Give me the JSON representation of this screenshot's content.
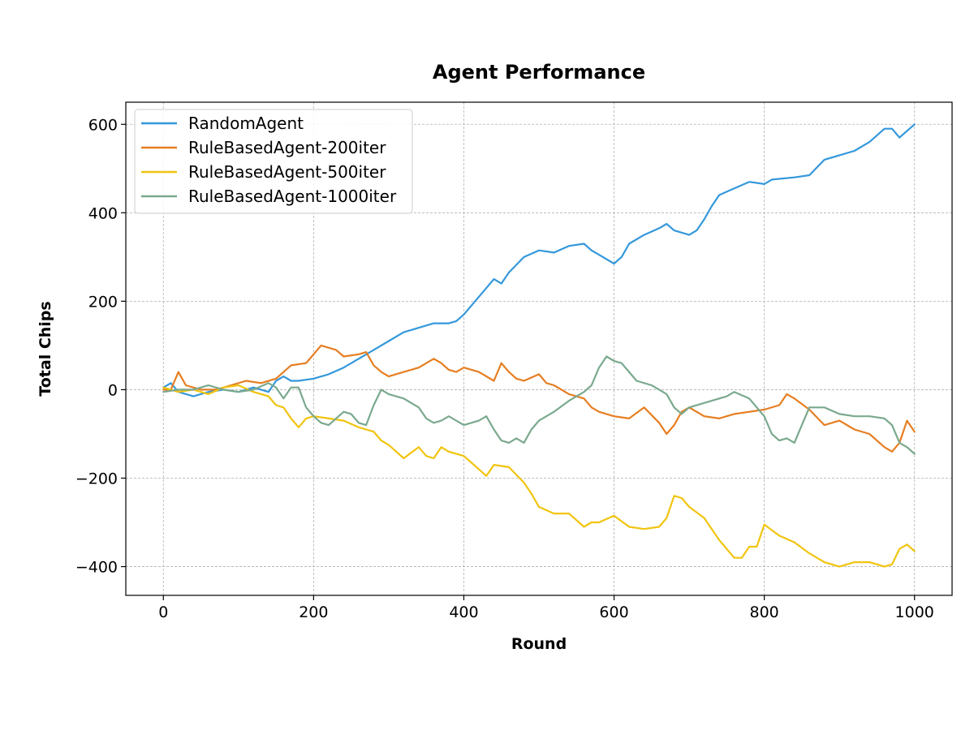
{
  "chart_data": {
    "type": "line",
    "title": "Agent Performance",
    "xlabel": "Round",
    "ylabel": "Total Chips",
    "xlim": [
      -50,
      1050
    ],
    "ylim": [
      -465,
      650
    ],
    "x_ticks": [
      0,
      200,
      400,
      600,
      800,
      1000
    ],
    "y_ticks": [
      -400,
      -200,
      0,
      200,
      400,
      600
    ],
    "x_tick_labels": [
      "0",
      "200",
      "400",
      "600",
      "800",
      "1000"
    ],
    "y_tick_labels": [
      "−400",
      "−200",
      "0",
      "200",
      "400",
      "600"
    ],
    "grid": true,
    "legend_position": "upper-left",
    "series": [
      {
        "name": "RandomAgent",
        "color": "#3498db",
        "points": [
          [
            0,
            5
          ],
          [
            10,
            15
          ],
          [
            20,
            -5
          ],
          [
            40,
            -15
          ],
          [
            60,
            -5
          ],
          [
            80,
            0
          ],
          [
            100,
            -5
          ],
          [
            120,
            5
          ],
          [
            140,
            -5
          ],
          [
            150,
            20
          ],
          [
            160,
            30
          ],
          [
            170,
            20
          ],
          [
            180,
            20
          ],
          [
            200,
            25
          ],
          [
            220,
            35
          ],
          [
            240,
            50
          ],
          [
            260,
            70
          ],
          [
            280,
            90
          ],
          [
            300,
            110
          ],
          [
            320,
            130
          ],
          [
            340,
            140
          ],
          [
            360,
            150
          ],
          [
            380,
            150
          ],
          [
            390,
            155
          ],
          [
            400,
            170
          ],
          [
            420,
            210
          ],
          [
            440,
            250
          ],
          [
            450,
            240
          ],
          [
            460,
            265
          ],
          [
            480,
            300
          ],
          [
            500,
            315
          ],
          [
            520,
            310
          ],
          [
            540,
            325
          ],
          [
            560,
            330
          ],
          [
            570,
            315
          ],
          [
            580,
            305
          ],
          [
            600,
            285
          ],
          [
            610,
            300
          ],
          [
            620,
            330
          ],
          [
            640,
            350
          ],
          [
            660,
            365
          ],
          [
            670,
            375
          ],
          [
            680,
            360
          ],
          [
            700,
            350
          ],
          [
            710,
            360
          ],
          [
            720,
            385
          ],
          [
            730,
            415
          ],
          [
            740,
            440
          ],
          [
            760,
            455
          ],
          [
            780,
            470
          ],
          [
            800,
            465
          ],
          [
            810,
            475
          ],
          [
            840,
            480
          ],
          [
            860,
            485
          ],
          [
            880,
            520
          ],
          [
            900,
            530
          ],
          [
            920,
            540
          ],
          [
            940,
            560
          ],
          [
            960,
            590
          ],
          [
            970,
            590
          ],
          [
            980,
            570
          ],
          [
            1000,
            600
          ]
        ]
      },
      {
        "name": "RuleBasedAgent-200iter",
        "color": "#e67e22",
        "points": [
          [
            0,
            0
          ],
          [
            10,
            0
          ],
          [
            20,
            40
          ],
          [
            30,
            10
          ],
          [
            50,
            0
          ],
          [
            70,
            0
          ],
          [
            90,
            10
          ],
          [
            110,
            20
          ],
          [
            130,
            15
          ],
          [
            150,
            25
          ],
          [
            170,
            55
          ],
          [
            190,
            60
          ],
          [
            200,
            80
          ],
          [
            210,
            100
          ],
          [
            230,
            90
          ],
          [
            240,
            75
          ],
          [
            260,
            80
          ],
          [
            270,
            85
          ],
          [
            280,
            55
          ],
          [
            290,
            40
          ],
          [
            300,
            30
          ],
          [
            320,
            40
          ],
          [
            340,
            50
          ],
          [
            350,
            60
          ],
          [
            360,
            70
          ],
          [
            370,
            60
          ],
          [
            380,
            45
          ],
          [
            390,
            40
          ],
          [
            400,
            50
          ],
          [
            420,
            40
          ],
          [
            440,
            20
          ],
          [
            450,
            60
          ],
          [
            460,
            40
          ],
          [
            470,
            25
          ],
          [
            480,
            20
          ],
          [
            500,
            35
          ],
          [
            510,
            15
          ],
          [
            520,
            10
          ],
          [
            540,
            -10
          ],
          [
            560,
            -20
          ],
          [
            570,
            -40
          ],
          [
            580,
            -50
          ],
          [
            600,
            -60
          ],
          [
            620,
            -65
          ],
          [
            640,
            -40
          ],
          [
            660,
            -75
          ],
          [
            670,
            -100
          ],
          [
            680,
            -80
          ],
          [
            690,
            -50
          ],
          [
            700,
            -40
          ],
          [
            720,
            -60
          ],
          [
            740,
            -65
          ],
          [
            760,
            -55
          ],
          [
            780,
            -50
          ],
          [
            800,
            -45
          ],
          [
            820,
            -35
          ],
          [
            830,
            -10
          ],
          [
            840,
            -20
          ],
          [
            860,
            -45
          ],
          [
            880,
            -80
          ],
          [
            900,
            -70
          ],
          [
            920,
            -90
          ],
          [
            940,
            -100
          ],
          [
            960,
            -130
          ],
          [
            970,
            -140
          ],
          [
            980,
            -120
          ],
          [
            990,
            -70
          ],
          [
            1000,
            -95
          ]
        ]
      },
      {
        "name": "RuleBasedAgent-500iter",
        "color": "#f1c40f",
        "points": [
          [
            0,
            5
          ],
          [
            20,
            -5
          ],
          [
            40,
            0
          ],
          [
            60,
            -10
          ],
          [
            80,
            5
          ],
          [
            100,
            10
          ],
          [
            120,
            -5
          ],
          [
            140,
            -15
          ],
          [
            150,
            -35
          ],
          [
            160,
            -40
          ],
          [
            170,
            -65
          ],
          [
            180,
            -85
          ],
          [
            190,
            -65
          ],
          [
            200,
            -60
          ],
          [
            220,
            -65
          ],
          [
            240,
            -70
          ],
          [
            260,
            -85
          ],
          [
            280,
            -95
          ],
          [
            290,
            -115
          ],
          [
            300,
            -125
          ],
          [
            310,
            -140
          ],
          [
            320,
            -155
          ],
          [
            340,
            -130
          ],
          [
            350,
            -150
          ],
          [
            360,
            -155
          ],
          [
            370,
            -130
          ],
          [
            380,
            -140
          ],
          [
            400,
            -150
          ],
          [
            420,
            -180
          ],
          [
            430,
            -195
          ],
          [
            440,
            -170
          ],
          [
            460,
            -175
          ],
          [
            480,
            -210
          ],
          [
            490,
            -235
          ],
          [
            500,
            -265
          ],
          [
            520,
            -280
          ],
          [
            540,
            -280
          ],
          [
            560,
            -310
          ],
          [
            570,
            -300
          ],
          [
            580,
            -300
          ],
          [
            600,
            -285
          ],
          [
            620,
            -310
          ],
          [
            640,
            -315
          ],
          [
            660,
            -310
          ],
          [
            670,
            -290
          ],
          [
            680,
            -240
          ],
          [
            690,
            -245
          ],
          [
            700,
            -265
          ],
          [
            720,
            -290
          ],
          [
            740,
            -340
          ],
          [
            760,
            -380
          ],
          [
            770,
            -380
          ],
          [
            780,
            -355
          ],
          [
            790,
            -355
          ],
          [
            800,
            -305
          ],
          [
            820,
            -330
          ],
          [
            840,
            -345
          ],
          [
            860,
            -370
          ],
          [
            880,
            -390
          ],
          [
            900,
            -400
          ],
          [
            920,
            -390
          ],
          [
            940,
            -390
          ],
          [
            960,
            -400
          ],
          [
            970,
            -395
          ],
          [
            980,
            -360
          ],
          [
            990,
            -350
          ],
          [
            1000,
            -365
          ]
        ]
      },
      {
        "name": "RuleBasedAgent-1000iter",
        "color": "#7aa98e",
        "points": [
          [
            0,
            -5
          ],
          [
            20,
            0
          ],
          [
            40,
            0
          ],
          [
            60,
            10
          ],
          [
            80,
            0
          ],
          [
            100,
            -5
          ],
          [
            120,
            0
          ],
          [
            140,
            15
          ],
          [
            150,
            5
          ],
          [
            160,
            -20
          ],
          [
            170,
            5
          ],
          [
            180,
            5
          ],
          [
            190,
            -40
          ],
          [
            200,
            -60
          ],
          [
            210,
            -75
          ],
          [
            220,
            -80
          ],
          [
            230,
            -65
          ],
          [
            240,
            -50
          ],
          [
            250,
            -55
          ],
          [
            260,
            -75
          ],
          [
            270,
            -80
          ],
          [
            280,
            -35
          ],
          [
            290,
            0
          ],
          [
            300,
            -10
          ],
          [
            320,
            -20
          ],
          [
            340,
            -40
          ],
          [
            350,
            -65
          ],
          [
            360,
            -75
          ],
          [
            370,
            -70
          ],
          [
            380,
            -60
          ],
          [
            400,
            -80
          ],
          [
            420,
            -70
          ],
          [
            430,
            -60
          ],
          [
            440,
            -90
          ],
          [
            450,
            -115
          ],
          [
            460,
            -120
          ],
          [
            470,
            -110
          ],
          [
            480,
            -120
          ],
          [
            490,
            -90
          ],
          [
            500,
            -70
          ],
          [
            520,
            -50
          ],
          [
            540,
            -25
          ],
          [
            560,
            -5
          ],
          [
            570,
            10
          ],
          [
            580,
            50
          ],
          [
            590,
            75
          ],
          [
            600,
            65
          ],
          [
            610,
            60
          ],
          [
            620,
            40
          ],
          [
            630,
            20
          ],
          [
            650,
            10
          ],
          [
            660,
            0
          ],
          [
            670,
            -10
          ],
          [
            680,
            -40
          ],
          [
            690,
            -55
          ],
          [
            700,
            -40
          ],
          [
            720,
            -30
          ],
          [
            740,
            -20
          ],
          [
            750,
            -15
          ],
          [
            760,
            -5
          ],
          [
            780,
            -20
          ],
          [
            790,
            -40
          ],
          [
            800,
            -60
          ],
          [
            810,
            -100
          ],
          [
            820,
            -115
          ],
          [
            830,
            -110
          ],
          [
            840,
            -120
          ],
          [
            850,
            -80
          ],
          [
            860,
            -40
          ],
          [
            880,
            -40
          ],
          [
            900,
            -55
          ],
          [
            920,
            -60
          ],
          [
            940,
            -60
          ],
          [
            960,
            -65
          ],
          [
            970,
            -80
          ],
          [
            980,
            -120
          ],
          [
            990,
            -130
          ],
          [
            1000,
            -145
          ]
        ]
      }
    ]
  }
}
